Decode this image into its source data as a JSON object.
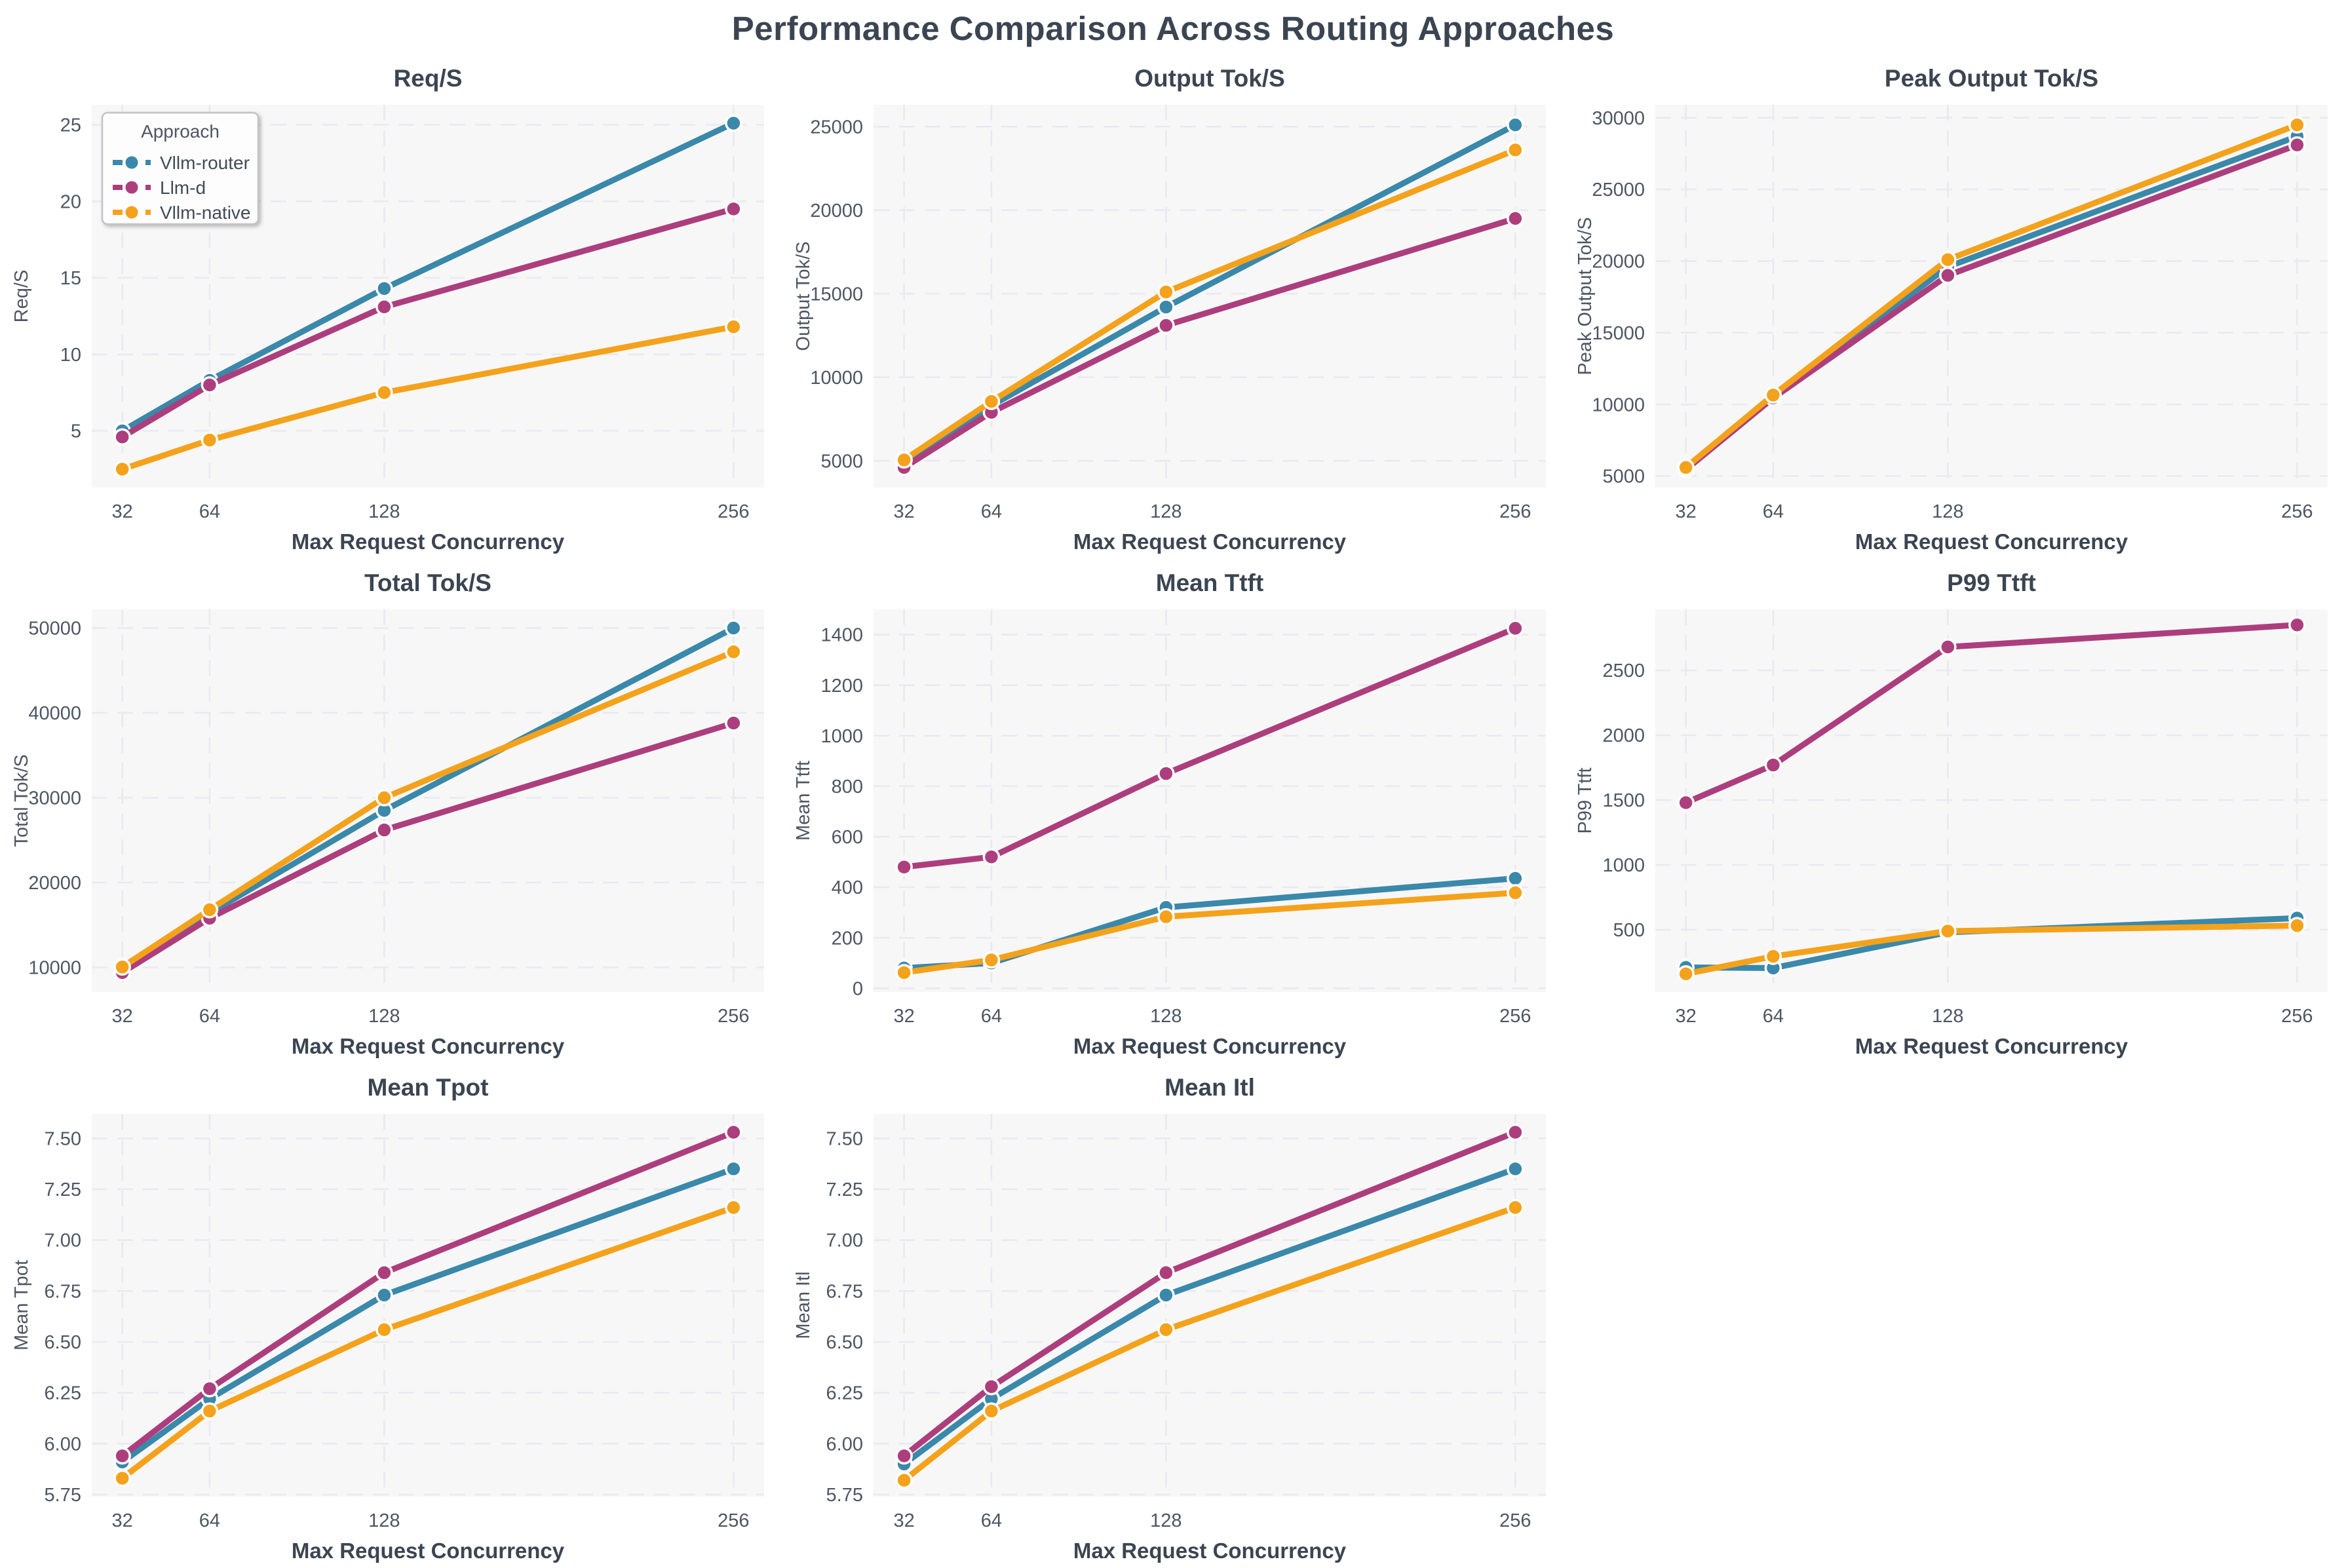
{
  "page_title": "Performance Comparison Across Routing Approaches",
  "colors": {
    "vllm_router": "#3a88aa",
    "llm_d": "#ad3e7d",
    "vllm_native": "#f4a21b",
    "title_text": "#3b4552",
    "tick_text": "#4d5663",
    "plot_background": "#f7f7f8",
    "gridline": "#e9eaee",
    "legend_background": "#fdfdfe",
    "legend_border": "#c3c3c6"
  },
  "legend": {
    "title": "Approach",
    "entries": [
      "Vllm-router",
      "Llm-d",
      "Vllm-native"
    ]
  },
  "x_axis": {
    "label": "Max Request Concurrency",
    "ticks": [
      32,
      64,
      128,
      256
    ],
    "tick_labels": [
      "32",
      "64",
      "128",
      "256"
    ],
    "xlim": [
      20.8,
      267.2
    ]
  },
  "chart_data": [
    {
      "type": "line",
      "title": "Req/S",
      "ylabel": "Req/S",
      "xlabel": "Max Request Concurrency",
      "x": [
        32,
        64,
        128,
        256
      ],
      "ylim": [
        1.3,
        26.3
      ],
      "yticks": [
        5,
        10,
        15,
        20,
        25
      ],
      "ytick_labels": [
        "5",
        "10",
        "15",
        "20",
        "25"
      ],
      "grid": true,
      "legend_position": "upper-left",
      "show_legend": true,
      "series": [
        {
          "name": "Vllm-router",
          "color": "#3a88aa",
          "values": [
            5.0,
            8.3,
            14.3,
            25.1
          ]
        },
        {
          "name": "Llm-d",
          "color": "#ad3e7d",
          "values": [
            4.6,
            8.0,
            13.1,
            19.5
          ]
        },
        {
          "name": "Vllm-native",
          "color": "#f4a21b",
          "values": [
            2.5,
            4.4,
            7.5,
            11.8
          ]
        }
      ]
    },
    {
      "type": "line",
      "title": "Output Tok/S",
      "ylabel": "Output Tok/S",
      "xlabel": "Max Request Concurrency",
      "x": [
        32,
        64,
        128,
        256
      ],
      "ylim": [
        3400,
        26300
      ],
      "yticks": [
        5000,
        10000,
        15000,
        20000,
        25000
      ],
      "ytick_labels": [
        "5000",
        "10000",
        "15000",
        "20000",
        "25000"
      ],
      "grid": true,
      "show_legend": false,
      "series": [
        {
          "name": "Vllm-router",
          "color": "#3a88aa",
          "values": [
            4950,
            8300,
            14200,
            25100
          ]
        },
        {
          "name": "Llm-d",
          "color": "#ad3e7d",
          "values": [
            4600,
            7900,
            13100,
            19500
          ]
        },
        {
          "name": "Vllm-native",
          "color": "#f4a21b",
          "values": [
            5050,
            8550,
            15100,
            23600
          ]
        }
      ]
    },
    {
      "type": "line",
      "title": "Peak Output Tok/S",
      "ylabel": "Peak Output Tok/S",
      "xlabel": "Max Request Concurrency",
      "x": [
        32,
        64,
        128,
        256
      ],
      "ylim": [
        4200,
        30900
      ],
      "yticks": [
        5000,
        10000,
        15000,
        20000,
        25000,
        30000
      ],
      "ytick_labels": [
        "5000",
        "10000",
        "15000",
        "20000",
        "25000",
        "30000"
      ],
      "grid": true,
      "show_legend": false,
      "series": [
        {
          "name": "Vllm-router",
          "color": "#3a88aa",
          "values": [
            5500,
            10500,
            19600,
            28700
          ]
        },
        {
          "name": "Llm-d",
          "color": "#ad3e7d",
          "values": [
            5450,
            10450,
            19000,
            28100
          ]
        },
        {
          "name": "Vllm-native",
          "color": "#f4a21b",
          "values": [
            5600,
            10650,
            20100,
            29500
          ]
        }
      ]
    },
    {
      "type": "line",
      "title": "Total Tok/S",
      "ylabel": "Total Tok/S",
      "xlabel": "Max Request Concurrency",
      "x": [
        32,
        64,
        128,
        256
      ],
      "ylim": [
        7100,
        52200
      ],
      "yticks": [
        10000,
        20000,
        30000,
        40000,
        50000
      ],
      "ytick_labels": [
        "10000",
        "20000",
        "30000",
        "40000",
        "50000"
      ],
      "grid": true,
      "show_legend": false,
      "series": [
        {
          "name": "Vllm-router",
          "color": "#3a88aa",
          "values": [
            10000,
            16400,
            28500,
            50000
          ]
        },
        {
          "name": "Llm-d",
          "color": "#ad3e7d",
          "values": [
            9400,
            15800,
            26200,
            38800
          ]
        },
        {
          "name": "Vllm-native",
          "color": "#f4a21b",
          "values": [
            10050,
            16800,
            30000,
            47200
          ]
        }
      ]
    },
    {
      "type": "line",
      "title": "Mean Ttft",
      "ylabel": "Mean Ttft",
      "xlabel": "Max Request Concurrency",
      "x": [
        32,
        64,
        128,
        256
      ],
      "ylim": [
        -15,
        1500
      ],
      "yticks": [
        0,
        200,
        400,
        600,
        800,
        1000,
        1200,
        1400
      ],
      "ytick_labels": [
        "0",
        "200",
        "400",
        "600",
        "800",
        "1000",
        "1200",
        "1400"
      ],
      "grid": true,
      "show_legend": false,
      "series": [
        {
          "name": "Vllm-router",
          "color": "#3a88aa",
          "values": [
            80,
            100,
            320,
            435
          ]
        },
        {
          "name": "Llm-d",
          "color": "#ad3e7d",
          "values": [
            480,
            520,
            850,
            1425
          ]
        },
        {
          "name": "Vllm-native",
          "color": "#f4a21b",
          "values": [
            62,
            112,
            283,
            378
          ]
        }
      ]
    },
    {
      "type": "line",
      "title": "P99 Ttft",
      "ylabel": "P99 Ttft",
      "xlabel": "Max Request Concurrency",
      "x": [
        32,
        64,
        128,
        256
      ],
      "ylim": [
        20,
        2970
      ],
      "yticks": [
        500,
        1000,
        1500,
        2000,
        2500
      ],
      "ytick_labels": [
        "500",
        "1000",
        "1500",
        "2000",
        "2500"
      ],
      "grid": true,
      "show_legend": false,
      "series": [
        {
          "name": "Vllm-router",
          "color": "#3a88aa",
          "values": [
            210,
            205,
            480,
            590
          ]
        },
        {
          "name": "Llm-d",
          "color": "#ad3e7d",
          "values": [
            1480,
            1770,
            2680,
            2850
          ]
        },
        {
          "name": "Vllm-native",
          "color": "#f4a21b",
          "values": [
            160,
            295,
            490,
            532
          ]
        }
      ]
    },
    {
      "type": "line",
      "title": "Mean Tpot",
      "ylabel": "Mean Tpot",
      "xlabel": "Max Request Concurrency",
      "x": [
        32,
        64,
        128,
        256
      ],
      "ylim": [
        5.74,
        7.62
      ],
      "yticks": [
        5.75,
        6.0,
        6.25,
        6.5,
        6.75,
        7.0,
        7.25,
        7.5
      ],
      "ytick_labels": [
        "5.75",
        "6.00",
        "6.25",
        "6.50",
        "6.75",
        "7.00",
        "7.25",
        "7.50"
      ],
      "grid": true,
      "show_legend": false,
      "series": [
        {
          "name": "Vllm-router",
          "color": "#3a88aa",
          "values": [
            5.91,
            6.22,
            6.73,
            7.35
          ]
        },
        {
          "name": "Llm-d",
          "color": "#ad3e7d",
          "values": [
            5.94,
            6.27,
            6.84,
            7.53
          ]
        },
        {
          "name": "Vllm-native",
          "color": "#f4a21b",
          "values": [
            5.83,
            6.16,
            6.56,
            7.16
          ]
        }
      ]
    },
    {
      "type": "line",
      "title": "Mean Itl",
      "ylabel": "Mean Itl",
      "xlabel": "Max Request Concurrency",
      "x": [
        32,
        64,
        128,
        256
      ],
      "ylim": [
        5.74,
        7.62
      ],
      "yticks": [
        5.75,
        6.0,
        6.25,
        6.5,
        6.75,
        7.0,
        7.25,
        7.5
      ],
      "ytick_labels": [
        "5.75",
        "6.00",
        "6.25",
        "6.50",
        "6.75",
        "7.00",
        "7.25",
        "7.50"
      ],
      "grid": true,
      "show_legend": false,
      "series": [
        {
          "name": "Vllm-router",
          "color": "#3a88aa",
          "values": [
            5.9,
            6.22,
            6.73,
            7.35
          ]
        },
        {
          "name": "Llm-d",
          "color": "#ad3e7d",
          "values": [
            5.94,
            6.28,
            6.84,
            7.53
          ]
        },
        {
          "name": "Vllm-native",
          "color": "#f4a21b",
          "values": [
            5.82,
            6.16,
            6.56,
            7.16
          ]
        }
      ]
    }
  ]
}
